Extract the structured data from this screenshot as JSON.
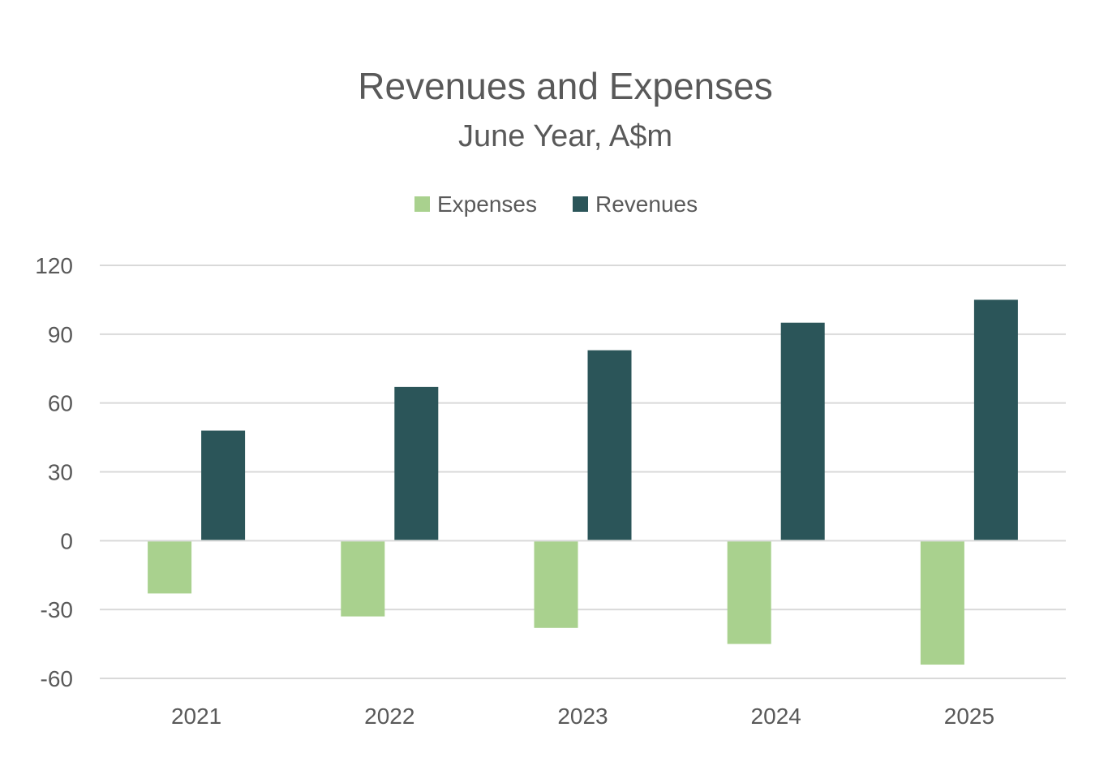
{
  "chart_data": {
    "type": "bar",
    "title": "Revenues and Expenses",
    "subtitle": "June Year, A$m",
    "categories": [
      "2021",
      "2022",
      "2023",
      "2024",
      "2025"
    ],
    "series": [
      {
        "name": "Expenses",
        "values": [
          -23,
          -33,
          -38,
          -45,
          -54
        ],
        "color": "#a9d18e"
      },
      {
        "name": "Revenues",
        "values": [
          48,
          67,
          83,
          95,
          105
        ],
        "color": "#2b5559"
      }
    ],
    "ylim": [
      -60,
      120
    ],
    "yticks": [
      120,
      90,
      60,
      30,
      0,
      -30,
      -60
    ],
    "xlabel": "",
    "ylabel": "",
    "grid": true,
    "legend": "top-center"
  }
}
